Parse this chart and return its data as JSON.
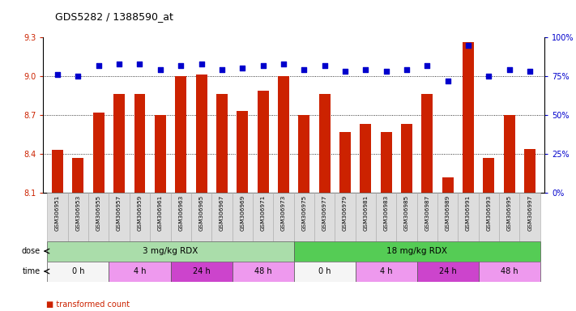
{
  "title": "GDS5282 / 1388590_at",
  "samples": [
    "GSM306951",
    "GSM306953",
    "GSM306955",
    "GSM306957",
    "GSM306959",
    "GSM306961",
    "GSM306963",
    "GSM306965",
    "GSM306967",
    "GSM306969",
    "GSM306971",
    "GSM306973",
    "GSM306975",
    "GSM306977",
    "GSM306979",
    "GSM306981",
    "GSM306983",
    "GSM306985",
    "GSM306987",
    "GSM306989",
    "GSM306991",
    "GSM306993",
    "GSM306995",
    "GSM306997"
  ],
  "bar_values": [
    8.43,
    8.37,
    8.72,
    8.86,
    8.86,
    8.7,
    9.0,
    9.01,
    8.86,
    8.73,
    8.89,
    9.0,
    8.7,
    8.86,
    8.57,
    8.63,
    8.57,
    8.63,
    8.86,
    8.22,
    9.26,
    8.37,
    8.7,
    8.44
  ],
  "percentile_values": [
    76,
    75,
    82,
    83,
    83,
    79,
    82,
    83,
    79,
    80,
    82,
    83,
    79,
    82,
    78,
    79,
    78,
    79,
    82,
    72,
    95,
    75,
    79,
    78
  ],
  "ylim_left": [
    8.1,
    9.3
  ],
  "ylim_right": [
    0,
    100
  ],
  "yticks_left": [
    8.1,
    8.4,
    8.7,
    9.0,
    9.3
  ],
  "yticks_right": [
    0,
    25,
    50,
    75,
    100
  ],
  "bar_color": "#cc2200",
  "dot_color": "#0000cc",
  "dose_groups": [
    {
      "label": "3 mg/kg RDX",
      "start": 0,
      "end": 12,
      "color": "#aaddaa"
    },
    {
      "label": "18 mg/kg RDX",
      "start": 12,
      "end": 24,
      "color": "#55cc55"
    }
  ],
  "time_groups": [
    {
      "label": "0 h",
      "start": 0,
      "end": 3,
      "color": "#f5f5f5"
    },
    {
      "label": "4 h",
      "start": 3,
      "end": 6,
      "color": "#ee99ee"
    },
    {
      "label": "24 h",
      "start": 6,
      "end": 9,
      "color": "#cc44cc"
    },
    {
      "label": "48 h",
      "start": 9,
      "end": 12,
      "color": "#ee99ee"
    },
    {
      "label": "0 h",
      "start": 12,
      "end": 15,
      "color": "#f5f5f5"
    },
    {
      "label": "4 h",
      "start": 15,
      "end": 18,
      "color": "#ee99ee"
    },
    {
      "label": "24 h",
      "start": 18,
      "end": 21,
      "color": "#cc44cc"
    },
    {
      "label": "48 h",
      "start": 21,
      "end": 24,
      "color": "#ee99ee"
    }
  ]
}
